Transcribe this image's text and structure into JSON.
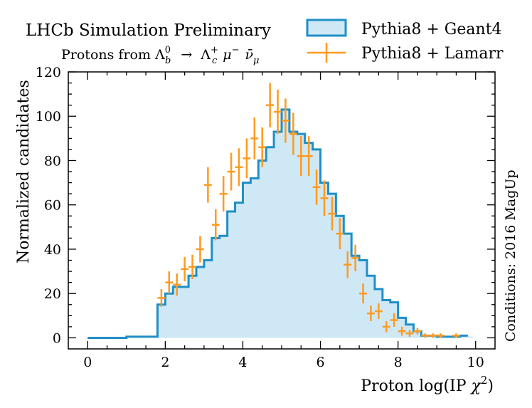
{
  "chart_data": {
    "type": "bar",
    "title": "LHCb Simulation Preliminary",
    "subtitle": "Protons from Λb0 → Λc+ μ− ν̄μ",
    "subtitle_parts": {
      "lead": "Protons from ",
      "lambda_b": "Λ",
      "lambda_b_sup": "0",
      "lambda_b_sub": "b",
      "arrow": "→",
      "lambda_c": "Λ",
      "lambda_c_sup": "+",
      "lambda_c_sub": "c",
      "mu": "μ",
      "mu_sup": "−",
      "nubar": "ν̄",
      "nubar_sub": "μ"
    },
    "xlabel": "Proton log(IP χ2)",
    "xlabel_parts": {
      "main": "Proton log(IP ",
      "chi": "χ",
      "chi_sup": "2",
      "close": ")"
    },
    "ylabel": "Normalized candidates",
    "side_label": "Conditions: 2016 MagUp",
    "xlim": [
      -0.5,
      10.5
    ],
    "ylim": [
      -5,
      120
    ],
    "xticks": [
      0,
      2,
      4,
      6,
      8,
      10
    ],
    "yticks": [
      0,
      20,
      40,
      60,
      80,
      100,
      120
    ],
    "legend_position": "top-right",
    "colors": {
      "histogram_edge": "#1f8fc8",
      "histogram_fill": "#cfe8f6",
      "points": "#ff9a1f"
    },
    "series": [
      {
        "name": "Pythia8 + Geant4",
        "kind": "step-histogram",
        "edges": [
          0,
          1.0,
          1.8,
          2.0,
          2.2,
          2.4,
          2.6,
          2.8,
          3.0,
          3.2,
          3.4,
          3.6,
          3.8,
          4.0,
          4.2,
          4.4,
          4.6,
          4.8,
          5.0,
          5.2,
          5.4,
          5.6,
          5.8,
          6.0,
          6.2,
          6.4,
          6.6,
          6.8,
          7.0,
          7.2,
          7.4,
          7.6,
          7.8,
          8.0,
          8.2,
          8.4,
          8.6,
          8.8,
          9.0,
          9.2,
          9.4,
          9.6,
          9.8
        ],
        "values": [
          0,
          0.5,
          15,
          20,
          23,
          23,
          28,
          32,
          35,
          45,
          46,
          57,
          61,
          70,
          72,
          80,
          86,
          93,
          103,
          93,
          92,
          88,
          85,
          70,
          65,
          55,
          47,
          37,
          35,
          28,
          22,
          17,
          16,
          9,
          6,
          3,
          1,
          1,
          0.5,
          0.5,
          0.5,
          1
        ]
      },
      {
        "name": "Pythia8 + Lamarr",
        "kind": "error-points",
        "points": [
          {
            "x": 1.9,
            "y": 18,
            "err": 4
          },
          {
            "x": 2.1,
            "y": 25,
            "err": 5
          },
          {
            "x": 2.3,
            "y": 24,
            "err": 5
          },
          {
            "x": 2.5,
            "y": 31,
            "err": 5.5
          },
          {
            "x": 2.7,
            "y": 32,
            "err": 5.5
          },
          {
            "x": 2.9,
            "y": 40,
            "err": 6
          },
          {
            "x": 3.1,
            "y": 69,
            "err": 8
          },
          {
            "x": 3.3,
            "y": 51,
            "err": 7
          },
          {
            "x": 3.5,
            "y": 65,
            "err": 8
          },
          {
            "x": 3.7,
            "y": 75,
            "err": 8.5
          },
          {
            "x": 3.9,
            "y": 77,
            "err": 8.5
          },
          {
            "x": 4.1,
            "y": 81,
            "err": 9
          },
          {
            "x": 4.3,
            "y": 90,
            "err": 9.5
          },
          {
            "x": 4.5,
            "y": 86,
            "err": 9
          },
          {
            "x": 4.7,
            "y": 105,
            "err": 10
          },
          {
            "x": 4.9,
            "y": 102,
            "err": 10
          },
          {
            "x": 5.1,
            "y": 98,
            "err": 10
          },
          {
            "x": 5.3,
            "y": 92,
            "err": 9.5
          },
          {
            "x": 5.5,
            "y": 82,
            "err": 9
          },
          {
            "x": 5.7,
            "y": 82,
            "err": 9
          },
          {
            "x": 5.9,
            "y": 68,
            "err": 8
          },
          {
            "x": 6.1,
            "y": 63,
            "err": 8
          },
          {
            "x": 6.3,
            "y": 56,
            "err": 7.5
          },
          {
            "x": 6.5,
            "y": 47,
            "err": 7
          },
          {
            "x": 6.7,
            "y": 33,
            "err": 6
          },
          {
            "x": 6.9,
            "y": 36,
            "err": 6
          },
          {
            "x": 7.1,
            "y": 20,
            "err": 4.5
          },
          {
            "x": 7.3,
            "y": 11,
            "err": 3.5
          },
          {
            "x": 7.5,
            "y": 12,
            "err": 3.5
          },
          {
            "x": 7.7,
            "y": 5,
            "err": 2.5
          },
          {
            "x": 7.9,
            "y": 8,
            "err": 3
          },
          {
            "x": 8.1,
            "y": 3,
            "err": 2
          },
          {
            "x": 8.3,
            "y": 2,
            "err": 1.5
          },
          {
            "x": 8.5,
            "y": 3,
            "err": 1.5
          },
          {
            "x": 8.7,
            "y": 1,
            "err": 1
          },
          {
            "x": 8.9,
            "y": 1,
            "err": 1
          },
          {
            "x": 9.1,
            "y": 1,
            "err": 1
          },
          {
            "x": 9.5,
            "y": 1,
            "err": 1
          }
        ]
      }
    ]
  }
}
